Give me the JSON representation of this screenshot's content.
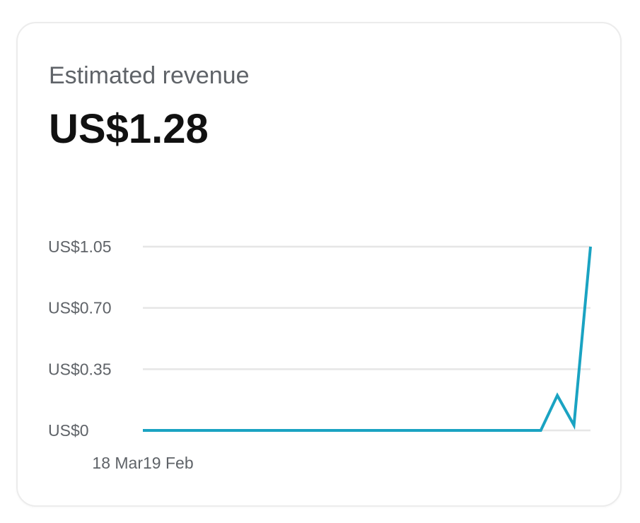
{
  "card": {
    "title": "Estimated revenue",
    "value": "US$1.28"
  },
  "colors": {
    "line": "#1aa3c2",
    "grid": "#e6e6e6",
    "label": "#5f6368"
  },
  "chart_data": {
    "type": "line",
    "title": "",
    "xlabel": "",
    "ylabel": "",
    "grid": true,
    "ylim": [
      0,
      1.05
    ],
    "yticks": [
      {
        "value": 1.05,
        "label": "US$1.05"
      },
      {
        "value": 0.7,
        "label": "US$0.70"
      },
      {
        "value": 0.35,
        "label": "US$0.35"
      },
      {
        "value": 0,
        "label": "US$0"
      }
    ],
    "xticks": [
      {
        "date": "19 Feb",
        "label": "19 Feb"
      },
      {
        "date": "18 Mar",
        "label": "18 Mar"
      }
    ],
    "series": [
      {
        "points": [
          {
            "date": "19 Feb",
            "y": 0
          },
          {
            "date": "20 Feb",
            "y": 0
          },
          {
            "date": "21 Feb",
            "y": 0
          },
          {
            "date": "22 Feb",
            "y": 0
          },
          {
            "date": "23 Feb",
            "y": 0
          },
          {
            "date": "24 Feb",
            "y": 0
          },
          {
            "date": "25 Feb",
            "y": 0
          },
          {
            "date": "26 Feb",
            "y": 0
          },
          {
            "date": "27 Feb",
            "y": 0
          },
          {
            "date": "28 Feb",
            "y": 0
          },
          {
            "date": "29 Feb",
            "y": 0
          },
          {
            "date": "1 Mar",
            "y": 0
          },
          {
            "date": "2 Mar",
            "y": 0
          },
          {
            "date": "3 Mar",
            "y": 0
          },
          {
            "date": "4 Mar",
            "y": 0
          },
          {
            "date": "5 Mar",
            "y": 0
          },
          {
            "date": "6 Mar",
            "y": 0
          },
          {
            "date": "7 Mar",
            "y": 0
          },
          {
            "date": "8 Mar",
            "y": 0
          },
          {
            "date": "9 Mar",
            "y": 0
          },
          {
            "date": "10 Mar",
            "y": 0
          },
          {
            "date": "11 Mar",
            "y": 0
          },
          {
            "date": "12 Mar",
            "y": 0
          },
          {
            "date": "13 Mar",
            "y": 0
          },
          {
            "date": "14 Mar",
            "y": 0
          },
          {
            "date": "15 Mar",
            "y": 0.2
          },
          {
            "date": "16 Mar",
            "y": 0.03
          },
          {
            "date": "17 Mar",
            "y": 1.05
          }
        ]
      }
    ]
  }
}
